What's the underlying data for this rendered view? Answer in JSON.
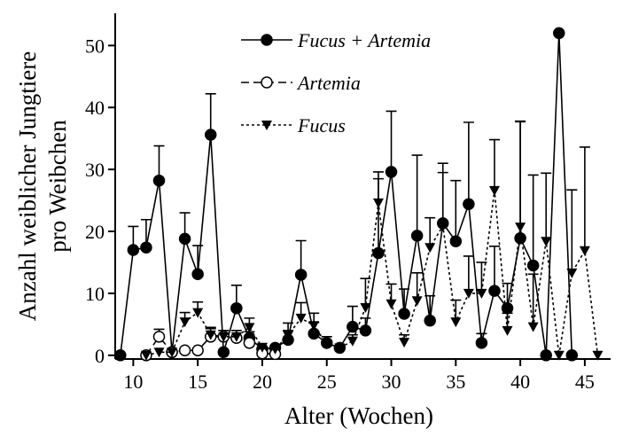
{
  "chart_data": {
    "type": "line",
    "xlabel": "Alter (Wochen)",
    "ylabel": [
      "Anzahl weiblicher Jungtiere",
      "pro Weibchen"
    ],
    "xlim": [
      8.6,
      47
    ],
    "ylim": [
      -0.6,
      55.2
    ],
    "xticks": [
      10,
      15,
      20,
      25,
      30,
      35,
      40,
      45
    ],
    "yticks": [
      0,
      10,
      20,
      30,
      40,
      50
    ],
    "series": [
      {
        "name": "Fucus + Artemia",
        "color": "#000000",
        "marker": "filled-circle",
        "dash": "solid",
        "x": [
          9,
          10,
          11,
          12,
          13,
          14,
          15,
          16,
          17,
          18,
          19,
          20,
          21,
          22,
          23,
          24,
          25,
          26,
          27,
          28,
          29,
          30,
          31,
          32,
          33,
          34,
          35,
          36,
          37,
          38,
          39,
          40,
          41,
          42,
          43,
          44
        ],
        "values": [
          0,
          17,
          17.4,
          28.2,
          0.5,
          18.8,
          13.1,
          35.6,
          0.5,
          7.6,
          2.8,
          1,
          1.2,
          2.5,
          13,
          3.5,
          2,
          1.2,
          4.6,
          4,
          16.5,
          29.6,
          6.7,
          19.3,
          5.6,
          21.3,
          18.4,
          24.4,
          2,
          10.4,
          7.6,
          18.9,
          14.5,
          0,
          52,
          0
        ],
        "errors": [
          null,
          3.8,
          4.5,
          5.6,
          null,
          4.2,
          4.6,
          6.6,
          null,
          3.7,
          1,
          null,
          null,
          1.5,
          5.5,
          1.8,
          1,
          null,
          3.3,
          2,
          12,
          9.8,
          4,
          13,
          4,
          9.7,
          9.8,
          13.2,
          1.5,
          7.2,
          4,
          18.9,
          14.6,
          null,
          null,
          null
        ]
      },
      {
        "name": "Artemia",
        "color": "#000000",
        "marker": "open-circle",
        "dash": "dashed",
        "x": [
          11,
          12,
          13,
          14,
          15,
          16,
          17,
          18,
          19,
          20,
          21
        ],
        "values": [
          0,
          3,
          0.5,
          0.8,
          0.8,
          3,
          3,
          2.8,
          2,
          0.3,
          0.2
        ],
        "errors": [
          null,
          1.2,
          null,
          null,
          null,
          1.5,
          1,
          null,
          null,
          null,
          null
        ]
      },
      {
        "name": "Fucus",
        "color": "#000000",
        "marker": "triangle-down",
        "dash": "dotted",
        "x": [
          11,
          12,
          13,
          14,
          15,
          16,
          17,
          18,
          19,
          20,
          21,
          22,
          23,
          24,
          25,
          26,
          27,
          28,
          29,
          30,
          31,
          32,
          33,
          34,
          35,
          36,
          37,
          38,
          39,
          40,
          41,
          42,
          43,
          44,
          45,
          46
        ],
        "values": [
          0,
          0.5,
          0.5,
          5.4,
          6.9,
          3.3,
          3,
          3,
          4.5,
          1.3,
          1,
          3.2,
          6,
          4.8,
          1.8,
          1.2,
          2.3,
          7.7,
          24.6,
          8.3,
          2.1,
          8.8,
          17.4,
          20.9,
          5.4,
          10,
          10,
          26.6,
          4,
          20.7,
          4.6,
          18.4,
          0,
          13.3,
          16.9,
          0
        ],
        "errors": [
          null,
          null,
          null,
          1.5,
          1.7,
          1,
          null,
          1,
          1.5,
          null,
          null,
          2,
          2.5,
          2,
          null,
          null,
          1,
          4.7,
          5,
          3.2,
          1.2,
          4.5,
          4.8,
          8.6,
          3.5,
          6,
          5,
          8.2,
          2.8,
          17,
          8.5,
          11,
          null,
          13.4,
          16.7,
          null
        ]
      }
    ]
  }
}
